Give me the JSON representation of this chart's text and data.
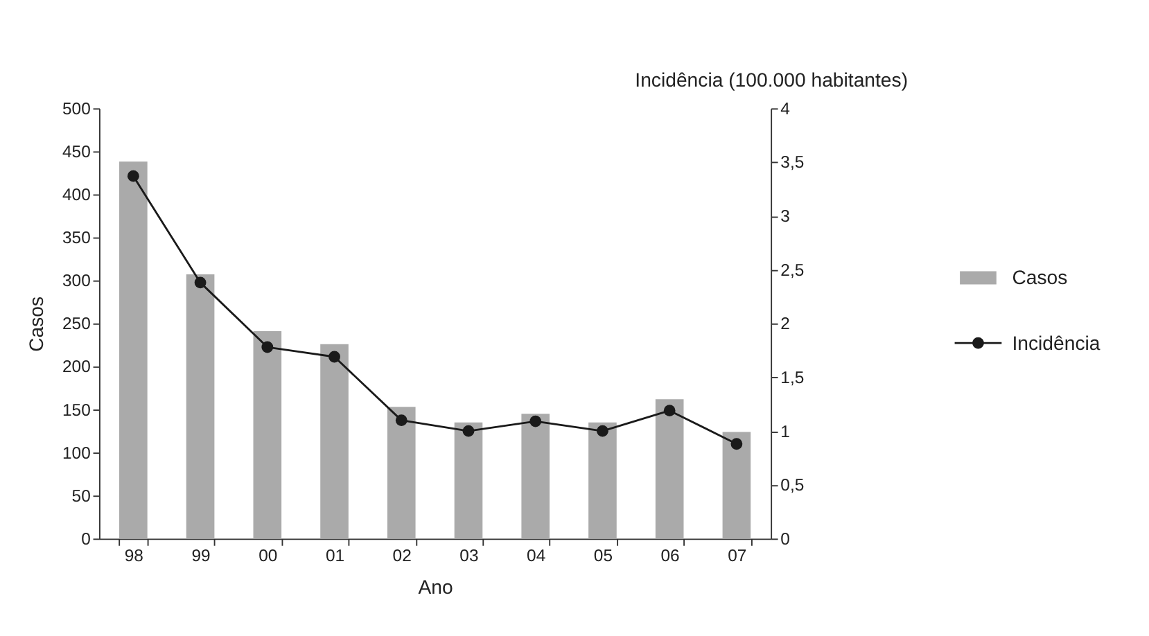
{
  "chart_data": {
    "type": "bar",
    "xlabel": "Ano",
    "ylabel": "Casos",
    "y2label": "Incidência (100.000 habitantes)",
    "categories": [
      "98",
      "99",
      "00",
      "01",
      "02",
      "03",
      "04",
      "05",
      "06",
      "07"
    ],
    "series": [
      {
        "name": "Casos",
        "color": "#aaaaaa",
        "values": [
          438,
          307,
          241,
          226,
          153,
          135,
          145,
          135,
          162,
          124
        ]
      },
      {
        "name": "Incidência",
        "type": "line",
        "axis": "y2",
        "color": "#1a1a1a",
        "marker": "circle",
        "values": [
          3.37,
          2.38,
          1.78,
          1.69,
          1.1,
          1.0,
          1.09,
          1.0,
          1.19,
          0.88
        ]
      }
    ],
    "ylim": [
      0,
      500
    ],
    "yticks": [
      0,
      50,
      100,
      150,
      200,
      250,
      300,
      350,
      400,
      450,
      500
    ],
    "y2lim": [
      0,
      4
    ],
    "y2ticks": [
      0,
      {
        "value": 0.5,
        "label": "0,5"
      },
      1,
      {
        "value": 1.5,
        "label": "1,5"
      },
      2,
      {
        "value": 2.5,
        "label": "2,5"
      },
      3,
      {
        "value": 3.5,
        "label": "3,5"
      },
      4
    ],
    "grid": false,
    "legend": "right"
  }
}
